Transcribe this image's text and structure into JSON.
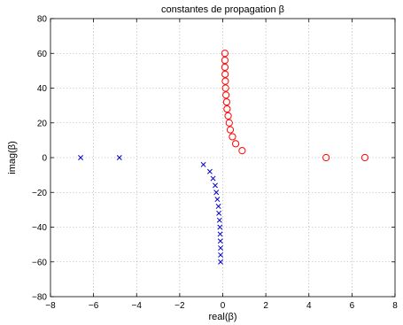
{
  "chart_data": {
    "type": "scatter",
    "title": "constantes de propagation β",
    "xlabel": "real(β)",
    "ylabel": "imag(β)",
    "xlim": [
      -8,
      8
    ],
    "ylim": [
      -80,
      80
    ],
    "xticks": [
      -8,
      -6,
      -4,
      -2,
      0,
      2,
      4,
      6,
      8
    ],
    "yticks": [
      -80,
      -60,
      -40,
      -20,
      0,
      20,
      40,
      60,
      80
    ],
    "xtick_labels": [
      "−8",
      "−6",
      "−4",
      "−2",
      "0",
      "2",
      "4",
      "6",
      "8"
    ],
    "ytick_labels": [
      "−80",
      "−60",
      "−40",
      "−20",
      "0",
      "20",
      "40",
      "60",
      "80"
    ],
    "grid": true,
    "series": [
      {
        "marker": "circle",
        "color": "#ff0000",
        "points": [
          [
            6.6,
            0
          ],
          [
            4.8,
            0
          ],
          [
            0.9,
            4
          ],
          [
            0.6,
            8
          ],
          [
            0.45,
            12
          ],
          [
            0.35,
            16
          ],
          [
            0.3,
            20
          ],
          [
            0.25,
            24
          ],
          [
            0.2,
            28
          ],
          [
            0.18,
            32
          ],
          [
            0.15,
            36
          ],
          [
            0.13,
            40
          ],
          [
            0.12,
            44
          ],
          [
            0.11,
            48
          ],
          [
            0.1,
            52
          ],
          [
            0.1,
            56
          ],
          [
            0.1,
            60
          ]
        ]
      },
      {
        "marker": "x",
        "color": "#0000cc",
        "points": [
          [
            -6.6,
            0
          ],
          [
            -4.8,
            0
          ],
          [
            -0.9,
            -4
          ],
          [
            -0.6,
            -8
          ],
          [
            -0.45,
            -12
          ],
          [
            -0.35,
            -16
          ],
          [
            -0.3,
            -20
          ],
          [
            -0.25,
            -24
          ],
          [
            -0.2,
            -28
          ],
          [
            -0.18,
            -32
          ],
          [
            -0.15,
            -36
          ],
          [
            -0.13,
            -40
          ],
          [
            -0.12,
            -44
          ],
          [
            -0.11,
            -48
          ],
          [
            -0.1,
            -52
          ],
          [
            -0.1,
            -56
          ],
          [
            -0.1,
            -60
          ]
        ]
      }
    ]
  }
}
